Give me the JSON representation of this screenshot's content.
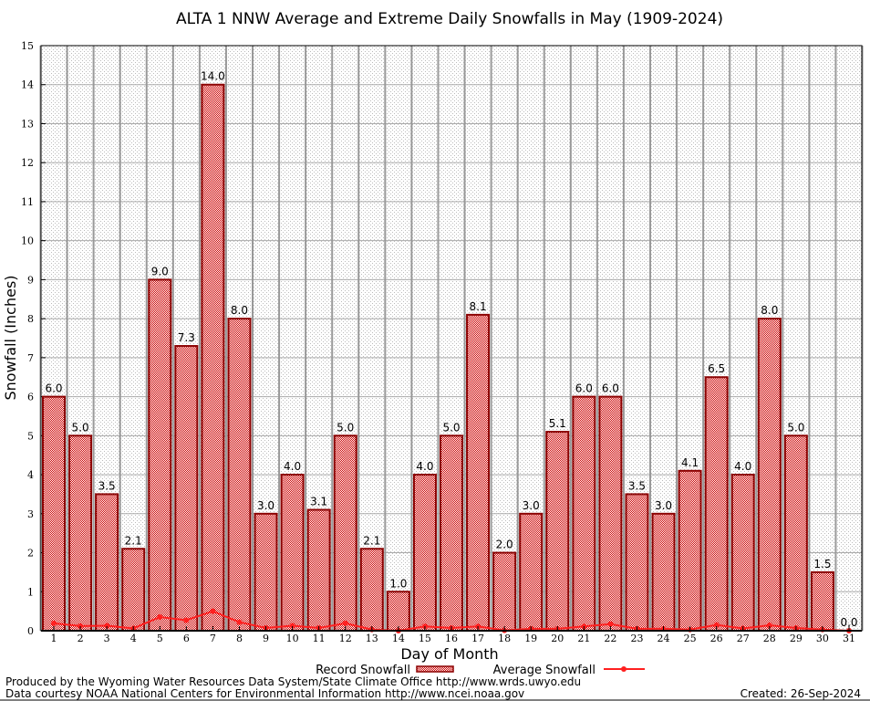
{
  "chart_data": {
    "type": "bar",
    "title": "ALTA 1 NNW Average and Extreme Daily Snowfalls in May (1909-2024)",
    "xlabel": "Day of Month",
    "ylabel": "Snowfall (Inches)",
    "ylim": [
      0,
      15
    ],
    "yticks": [
      "0",
      "1",
      "2",
      "3",
      "4",
      "5",
      "6",
      "7",
      "8",
      "9",
      "10",
      "11",
      "12",
      "13",
      "14",
      "15"
    ],
    "categories": [
      "1",
      "2",
      "3",
      "4",
      "5",
      "6",
      "7",
      "8",
      "9",
      "10",
      "11",
      "12",
      "13",
      "14",
      "15",
      "16",
      "17",
      "18",
      "19",
      "20",
      "21",
      "22",
      "23",
      "24",
      "25",
      "26",
      "27",
      "28",
      "29",
      "30",
      "31"
    ],
    "grid": true,
    "legend_position": "bottom",
    "series": [
      {
        "name": "Record Snowfall",
        "type": "bar",
        "values": [
          6.0,
          5.0,
          3.5,
          2.1,
          9.0,
          7.3,
          14.0,
          8.0,
          3.0,
          4.0,
          3.1,
          5.0,
          2.1,
          1.0,
          4.0,
          5.0,
          8.1,
          2.0,
          3.0,
          5.1,
          6.0,
          6.0,
          3.5,
          3.0,
          4.1,
          6.5,
          4.0,
          8.0,
          5.0,
          1.5,
          0.0
        ],
        "labels": [
          "6.0",
          "5.0",
          "3.5",
          "2.1",
          "9.0",
          "7.3",
          "14.0",
          "8.0",
          "3.0",
          "4.0",
          "3.1",
          "5.0",
          "2.1",
          "1.0",
          "4.0",
          "5.0",
          "8.1",
          "2.0",
          "3.0",
          "5.1",
          "6.0",
          "6.0",
          "3.5",
          "3.0",
          "4.1",
          "6.5",
          "4.0",
          "8.0",
          "5.0",
          "1.5",
          "0.0"
        ]
      },
      {
        "name": "Average Snowfall",
        "type": "line",
        "values": [
          0.19,
          0.12,
          0.13,
          0.06,
          0.35,
          0.27,
          0.5,
          0.22,
          0.07,
          0.13,
          0.07,
          0.19,
          0.03,
          0.0,
          0.11,
          0.07,
          0.11,
          0.01,
          0.05,
          0.05,
          0.11,
          0.17,
          0.05,
          0.05,
          0.03,
          0.15,
          0.06,
          0.14,
          0.07,
          0.03,
          0.0
        ]
      }
    ],
    "colors": {
      "bar_fill": "#cc0000",
      "bar_edge": "#8b0000",
      "line": "#ff2020"
    }
  },
  "footer": {
    "line1": "Produced by the Wyoming Water Resources Data System/State Climate Office http://www.wrds.uwyo.edu",
    "line2": "Data courtesy NOAA National Centers for Environmental Information http://www.ncei.noaa.gov",
    "created": "Created: 26-Sep-2024"
  }
}
